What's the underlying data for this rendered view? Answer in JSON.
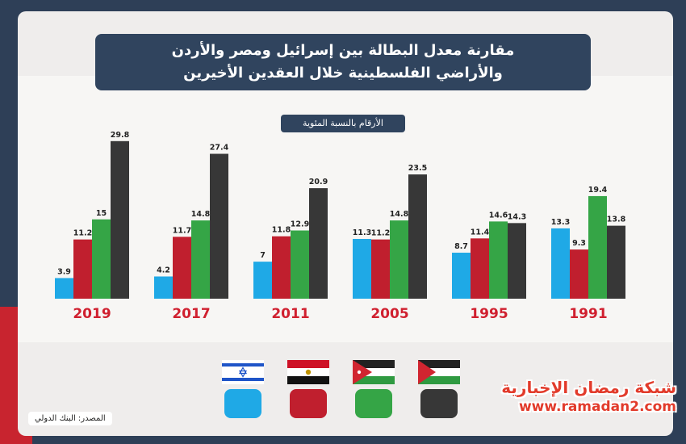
{
  "title": {
    "line1": "مقارنة معدل البطالة بين إسرائيل ومصر والأردن",
    "line2": "والأراضي الفلسطينية خلال العقدين الأخيرين"
  },
  "subtitle": "الأرقام بالنسبة المئوية",
  "source": "المصدر: البنك الدولي",
  "watermark": {
    "name": "شبكة رمضان الإخبارية",
    "url": "www.ramadan2.com"
  },
  "colors": {
    "israel": "#1fa9e6",
    "egypt": "#c01f2e",
    "jordan": "#35a546",
    "palestine": "#373737",
    "year_label": "#d0202f"
  },
  "legend": [
    {
      "key": "palestine",
      "flag_icon": "palestine-flag-icon"
    },
    {
      "key": "jordan",
      "flag_icon": "jordan-flag-icon"
    },
    {
      "key": "egypt",
      "flag_icon": "egypt-flag-icon"
    },
    {
      "key": "israel",
      "flag_icon": "israel-flag-icon"
    }
  ],
  "chart_data": {
    "type": "bar",
    "categories": [
      "2019",
      "2017",
      "2011",
      "2005",
      "1995",
      "1991"
    ],
    "series": [
      {
        "key": "israel",
        "values": [
          3.9,
          4.2,
          7,
          11.3,
          8.7,
          13.3
        ],
        "labels": [
          "3.9",
          "4.2",
          "7",
          "11.3",
          "8.7",
          "13.3"
        ]
      },
      {
        "key": "egypt",
        "values": [
          11.2,
          11.7,
          11.8,
          11.2,
          11.4,
          9.3
        ],
        "labels": [
          "11.2",
          "11.7",
          "11.8",
          "11.2",
          "11.4",
          "9.3"
        ]
      },
      {
        "key": "jordan",
        "values": [
          15,
          14.8,
          12.9,
          14.8,
          14.6,
          19.4
        ],
        "labels": [
          "15",
          "14.8",
          "12.9",
          "14.8",
          "14.6",
          "19.4"
        ]
      },
      {
        "key": "palestine",
        "values": [
          29.8,
          27.4,
          20.9,
          23.5,
          14.3,
          13.8
        ],
        "labels": [
          "29.8",
          "27.4",
          "20.9",
          "23.5",
          "14.3",
          "13.8"
        ]
      }
    ],
    "ylim": [
      0,
      30
    ],
    "grid": false,
    "legend_position": "bottom"
  }
}
